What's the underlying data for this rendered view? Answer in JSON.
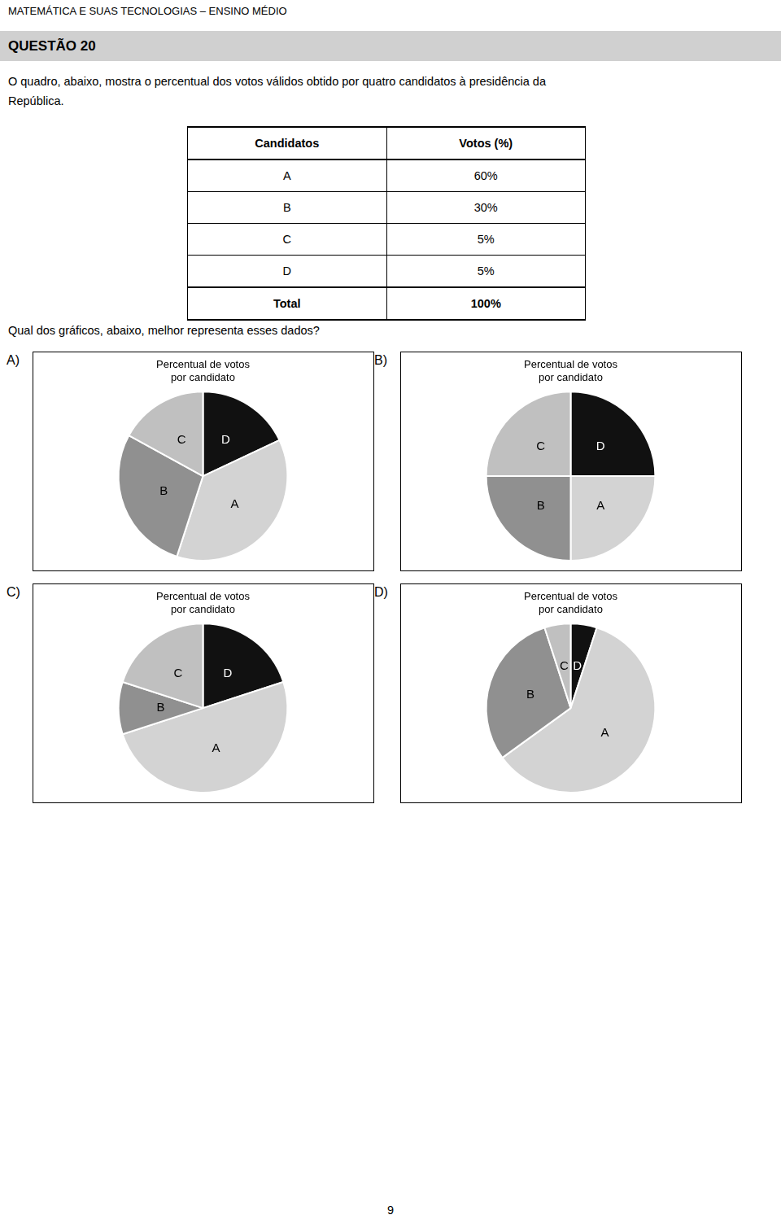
{
  "header": "MATEMÁTICA E SUAS TECNOLOGIAS – ENSINO MÉDIO",
  "question_label": "QUESTÃO 20",
  "question_text": [
    "O quadro, abaixo, mostra o percentual dos votos válidos obtido por quatro candidatos à presidência da",
    "República."
  ],
  "table": {
    "columns": [
      "Candidatos",
      "Votos (%)"
    ],
    "rows": [
      [
        "A",
        "60%"
      ],
      [
        "B",
        "30%"
      ],
      [
        "C",
        "5%"
      ],
      [
        "D",
        "5%"
      ],
      [
        "Total",
        "100%"
      ]
    ]
  },
  "question2": "Qual dos gráficos, abaixo, melhor representa esses dados?",
  "page_number": "9",
  "chart_data": [
    {
      "type": "pie",
      "annotation": "A)",
      "title": "Percentual de votos\npor candidato",
      "categories": [
        "D",
        "A",
        "B",
        "C"
      ],
      "values": [
        18,
        37,
        28,
        17
      ],
      "colors": [
        "#111111",
        "#d3d3d3",
        "#909090",
        "#c0c0c0"
      ],
      "legend": "none"
    },
    {
      "type": "pie",
      "annotation": "B)",
      "title": "Percentual de votos\npor candidato",
      "categories": [
        "D",
        "A",
        "B",
        "C"
      ],
      "values": [
        25,
        25,
        25,
        25
      ],
      "colors": [
        "#111111",
        "#d3d3d3",
        "#909090",
        "#c0c0c0"
      ],
      "legend": "none"
    },
    {
      "type": "pie",
      "annotation": "C)",
      "title": "Percentual de votos\npor candidato",
      "categories": [
        "D",
        "A",
        "B",
        "C"
      ],
      "values": [
        20,
        50,
        10,
        20
      ],
      "colors": [
        "#111111",
        "#d3d3d3",
        "#909090",
        "#c0c0c0"
      ],
      "legend": "none"
    },
    {
      "type": "pie",
      "annotation": "D)",
      "title": "Percentual de votos\npor candidato",
      "categories": [
        "D",
        "A",
        "B",
        "C"
      ],
      "values": [
        5,
        60,
        30,
        5
      ],
      "colors": [
        "#111111",
        "#d3d3d3",
        "#909090",
        "#c0c0c0"
      ],
      "legend": "none"
    }
  ]
}
